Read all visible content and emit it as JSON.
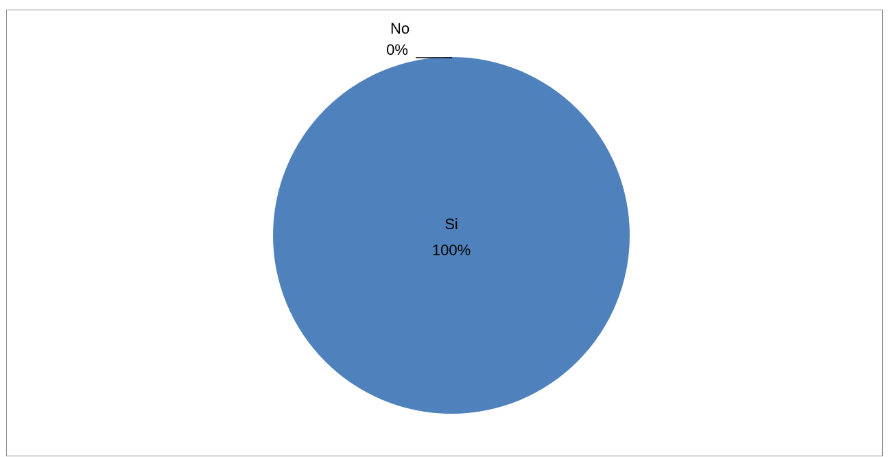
{
  "chart_data": {
    "type": "pie",
    "categories": [
      "Si",
      "No"
    ],
    "values": [
      100,
      0
    ],
    "data_labels": [
      {
        "category": "Si",
        "percent": "100%"
      },
      {
        "category": "No",
        "percent": "0%"
      }
    ],
    "colors": [
      "#4F81BD",
      "#C0504D"
    ],
    "title": "",
    "legend": "none",
    "start_angle_deg": 0
  }
}
